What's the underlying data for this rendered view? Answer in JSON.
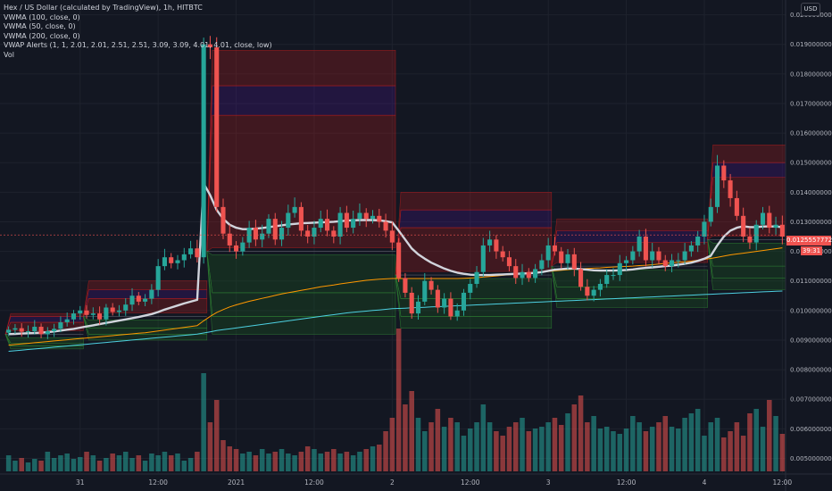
{
  "legend": {
    "title": "Hex / US Dollar (calculated by TradingView), 1h, HITBTC",
    "lines": [
      "VWMA (100, close, 0)",
      "VWMA (50, close, 0)",
      "VWMA (200, close, 0)",
      "VWAP Alerts (1, 1, 2.01, 2.01, 2.51, 2.51, 3.09, 3.09, 4.01, 4.01, close, low)",
      "Vol"
    ]
  },
  "currency_button": "USD",
  "last_price_label": "0.01255577725",
  "countdown": "39:31",
  "colors": {
    "background": "#131722",
    "up": "#26a69a",
    "down": "#ef5350",
    "vwma50": "#d1d4dc",
    "vwma100": "#ff9800",
    "vwma200": "#4dd0e1",
    "band_upper": "#b71c1c",
    "band_mid": "#4a148c",
    "band_lower": "#1b5e20"
  },
  "chart_data": {
    "type": "candlestick",
    "y_axis": {
      "range": [
        0.0045,
        0.0205
      ],
      "ticks": [
        "0.02000000000",
        "0.01900000000",
        "0.01800000000",
        "0.01700000000",
        "0.01600000000",
        "0.01500000000",
        "0.01400000000",
        "0.01300000000",
        "0.01200000000",
        "0.01100000000",
        "0.01000000000",
        "0.00900000000",
        "0.00800000000",
        "0.00700000000",
        "0.00600000000",
        "0.00500000000"
      ]
    },
    "x_axis": {
      "ticks": [
        {
          "label": "31",
          "idx": 11
        },
        {
          "label": "12:00",
          "idx": 23
        },
        {
          "label": "2021",
          "idx": 35
        },
        {
          "label": "12:00",
          "idx": 47
        },
        {
          "label": "2",
          "idx": 59
        },
        {
          "label": "12:00",
          "idx": 71
        },
        {
          "label": "3",
          "idx": 83
        },
        {
          "label": "12:00",
          "idx": 95
        },
        {
          "label": "4",
          "idx": 107
        },
        {
          "label": "12:00",
          "idx": 119
        }
      ]
    },
    "close": [
      0.00935,
      0.0094,
      0.00928,
      0.0093,
      0.00945,
      0.0092,
      0.0093,
      0.00938,
      0.0096,
      0.0097,
      0.0099,
      0.01,
      0.00985,
      0.0099,
      0.0097,
      0.0101,
      0.00995,
      0.01,
      0.0102,
      0.0105,
      0.0103,
      0.0104,
      0.0107,
      0.0115,
      0.0118,
      0.0116,
      0.0117,
      0.0119,
      0.0121,
      0.0118,
      0.019,
      0.0189,
      0.0135,
      0.0126,
      0.0122,
      0.012,
      0.0123,
      0.0128,
      0.0124,
      0.0126,
      0.0131,
      0.0124,
      0.0128,
      0.0133,
      0.0135,
      0.0127,
      0.0125,
      0.0128,
      0.0131,
      0.0127,
      0.0125,
      0.0133,
      0.0128,
      0.0131,
      0.0133,
      0.0131,
      0.0132,
      0.013,
      0.0127,
      0.0123,
      0.0111,
      0.0106,
      0.0099,
      0.0103,
      0.011,
      0.0107,
      0.0101,
      0.0104,
      0.0098,
      0.01,
      0.0106,
      0.0109,
      0.0113,
      0.0122,
      0.0124,
      0.012,
      0.0118,
      0.0115,
      0.0111,
      0.0113,
      0.0111,
      0.0114,
      0.0117,
      0.0122,
      0.012,
      0.0116,
      0.0119,
      0.0114,
      0.0108,
      0.0105,
      0.0107,
      0.0109,
      0.0112,
      0.0112,
      0.0116,
      0.0117,
      0.012,
      0.0125,
      0.0117,
      0.012,
      0.0117,
      0.0115,
      0.0117,
      0.0117,
      0.012,
      0.0122,
      0.0125,
      0.013,
      0.0135,
      0.0149,
      0.0144,
      0.0138,
      0.0132,
      0.0125,
      0.0123,
      0.0129,
      0.0133,
      0.0128,
      0.0129,
      0.0125
    ],
    "volume": [
      18,
      12,
      15,
      10,
      14,
      12,
      22,
      15,
      18,
      20,
      14,
      16,
      22,
      18,
      12,
      15,
      20,
      18,
      22,
      15,
      18,
      12,
      20,
      18,
      22,
      18,
      20,
      12,
      15,
      22,
      110,
      55,
      80,
      35,
      28,
      25,
      20,
      22,
      18,
      25,
      20,
      22,
      25,
      20,
      18,
      22,
      28,
      25,
      20,
      22,
      25,
      20,
      22,
      18,
      22,
      25,
      28,
      30,
      45,
      60,
      160,
      75,
      90,
      60,
      45,
      55,
      70,
      50,
      60,
      55,
      40,
      48,
      55,
      75,
      55,
      45,
      40,
      50,
      55,
      60,
      45,
      48,
      50,
      55,
      60,
      52,
      65,
      75,
      85,
      55,
      62,
      48,
      50,
      45,
      42,
      48,
      62,
      55,
      45,
      50,
      55,
      62,
      50,
      48,
      60,
      65,
      70,
      40,
      55,
      60,
      38,
      45,
      55,
      40,
      65,
      70,
      50,
      80,
      62,
      42
    ],
    "vwma50": [
      0.0092,
      0.00921,
      0.00922,
      0.00923,
      0.00924,
      0.00925,
      0.00927,
      0.00929,
      0.00932,
      0.00935,
      0.00938,
      0.00942,
      0.00946,
      0.0095,
      0.00954,
      0.00958,
      0.00962,
      0.00966,
      0.0097,
      0.00974,
      0.00978,
      0.00983,
      0.00988,
      0.00995,
      0.01003,
      0.0101,
      0.01017,
      0.01024,
      0.0103,
      0.01036,
      0.0143,
      0.0139,
      0.0134,
      0.0131,
      0.0129,
      0.0128,
      0.01275,
      0.01275,
      0.01277,
      0.01279,
      0.01282,
      0.01285,
      0.01288,
      0.01291,
      0.01293,
      0.01295,
      0.01296,
      0.01297,
      0.01298,
      0.01299,
      0.013,
      0.01302,
      0.01304,
      0.01305,
      0.01306,
      0.01306,
      0.01306,
      0.01305,
      0.01302,
      0.01298,
      0.0127,
      0.0124,
      0.0121,
      0.0119,
      0.01175,
      0.01162,
      0.01152,
      0.01142,
      0.01134,
      0.01128,
      0.01124,
      0.01121,
      0.0112,
      0.0112,
      0.0112,
      0.01121,
      0.01122,
      0.01123,
      0.01124,
      0.01125,
      0.01126,
      0.01127,
      0.0113,
      0.01134,
      0.01138,
      0.0114,
      0.01142,
      0.01142,
      0.0114,
      0.01138,
      0.01136,
      0.01135,
      0.01135,
      0.01135,
      0.01136,
      0.01137,
      0.01139,
      0.01142,
      0.01144,
      0.01146,
      0.01148,
      0.0115,
      0.01152,
      0.01155,
      0.01158,
      0.01162,
      0.01168,
      0.01175,
      0.01185,
      0.0122,
      0.0125,
      0.0127,
      0.0128,
      0.01285,
      0.01282,
      0.01282,
      0.01284,
      0.01284,
      0.01284,
      0.01282
    ],
    "vwma100": [
      0.00883,
      0.00885,
      0.00887,
      0.00889,
      0.00891,
      0.00893,
      0.00895,
      0.00897,
      0.00899,
      0.00901,
      0.00903,
      0.00905,
      0.00907,
      0.00909,
      0.00911,
      0.00913,
      0.00915,
      0.00917,
      0.00919,
      0.00921,
      0.00923,
      0.00925,
      0.00928,
      0.00931,
      0.00934,
      0.00937,
      0.0094,
      0.00943,
      0.00946,
      0.00949,
      0.00965,
      0.0098,
      0.00993,
      0.01003,
      0.01012,
      0.01019,
      0.01025,
      0.01031,
      0.01036,
      0.01041,
      0.01046,
      0.01051,
      0.01056,
      0.0106,
      0.01064,
      0.01068,
      0.01072,
      0.01076,
      0.0108,
      0.01083,
      0.01086,
      0.0109,
      0.01093,
      0.01096,
      0.01099,
      0.01102,
      0.01104,
      0.01106,
      0.01107,
      0.01108,
      0.01108,
      0.01108,
      0.01108,
      0.01108,
      0.01108,
      0.01108,
      0.01108,
      0.01108,
      0.01108,
      0.01108,
      0.01109,
      0.0111,
      0.01111,
      0.01113,
      0.01115,
      0.01117,
      0.01119,
      0.01121,
      0.01123,
      0.01125,
      0.01127,
      0.01129,
      0.0113,
      0.01132,
      0.01134,
      0.01136,
      0.01138,
      0.0114,
      0.01141,
      0.01142,
      0.01143,
      0.01144,
      0.01146,
      0.01147,
      0.01148,
      0.01149,
      0.0115,
      0.01152,
      0.01153,
      0.01155,
      0.01157,
      0.01159,
      0.01161,
      0.01163,
      0.01165,
      0.01167,
      0.0117,
      0.01173,
      0.01176,
      0.0118,
      0.01184,
      0.01188,
      0.01191,
      0.01194,
      0.01197,
      0.012,
      0.01203,
      0.01206,
      0.01209,
      0.01212
    ],
    "vwma200": [
      0.00862,
      0.00864,
      0.00866,
      0.00868,
      0.0087,
      0.00872,
      0.00874,
      0.00876,
      0.00878,
      0.0088,
      0.00882,
      0.00884,
      0.00886,
      0.00888,
      0.0089,
      0.00892,
      0.00894,
      0.00896,
      0.00898,
      0.009,
      0.00902,
      0.00904,
      0.00906,
      0.00908,
      0.0091,
      0.00912,
      0.00914,
      0.00916,
      0.00918,
      0.0092,
      0.00924,
      0.00928,
      0.00932,
      0.00935,
      0.00938,
      0.00941,
      0.00944,
      0.00947,
      0.0095,
      0.00953,
      0.00956,
      0.00959,
      0.00962,
      0.00965,
      0.00968,
      0.00971,
      0.00974,
      0.00977,
      0.0098,
      0.00983,
      0.00986,
      0.00989,
      0.00992,
      0.00994,
      0.00996,
      0.00998,
      0.01,
      0.01002,
      0.01004,
      0.01006,
      0.01007,
      0.01008,
      0.01009,
      0.0101,
      0.01011,
      0.01012,
      0.01013,
      0.01014,
      0.01015,
      0.01016,
      0.01017,
      0.01018,
      0.01019,
      0.0102,
      0.01021,
      0.01022,
      0.01023,
      0.01024,
      0.01025,
      0.01026,
      0.01027,
      0.01028,
      0.01029,
      0.0103,
      0.01031,
      0.01032,
      0.01033,
      0.01034,
      0.01035,
      0.01036,
      0.01037,
      0.01038,
      0.01039,
      0.0104,
      0.01041,
      0.01042,
      0.01043,
      0.01044,
      0.01045,
      0.01046,
      0.01047,
      0.01048,
      0.01049,
      0.0105,
      0.01051,
      0.01052,
      0.01053,
      0.01054,
      0.01055,
      0.01056,
      0.01057,
      0.01058,
      0.01059,
      0.0106,
      0.01061,
      0.01062,
      0.01063,
      0.01064,
      0.01065,
      0.01066
    ],
    "vwap_bands": [
      {
        "start": 0,
        "end": 11,
        "vwap": 0.0092,
        "upper": [
          0.0096,
          0.0098,
          0.0099
        ],
        "lower": [
          0.0089,
          0.0088,
          0.0087
        ]
      },
      {
        "start": 12,
        "end": 30,
        "vwap": 0.0098,
        "upper": [
          0.0104,
          0.0107,
          0.011
        ],
        "lower": [
          0.0094,
          0.0092,
          0.009
        ]
      },
      {
        "start": 31,
        "end": 59,
        "vwap": 0.012,
        "upper": [
          0.0166,
          0.0176,
          0.0188
        ],
        "lower": [
          0.0106,
          0.0098,
          0.0092
        ]
      },
      {
        "start": 60,
        "end": 83,
        "vwap": 0.0112,
        "upper": [
          0.0128,
          0.0134,
          0.014
        ],
        "lower": [
          0.0104,
          0.0098,
          0.0094
        ]
      },
      {
        "start": 84,
        "end": 107,
        "vwap": 0.0115,
        "upper": [
          0.0123,
          0.0127,
          0.0131
        ],
        "lower": [
          0.0108,
          0.0104,
          0.0101
        ]
      },
      {
        "start": 108,
        "end": 119,
        "vwap": 0.0124,
        "upper": [
          0.0145,
          0.015,
          0.0156
        ],
        "lower": [
          0.0115,
          0.0111,
          0.0107
        ]
      }
    ]
  }
}
